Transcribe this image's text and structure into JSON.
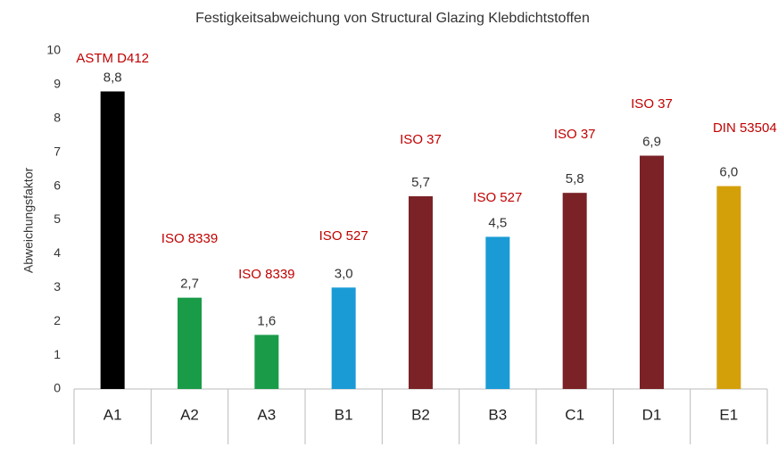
{
  "chart_data": {
    "type": "bar",
    "title": "Festigkeitsabweichung von Structural Glazing Klebdichtstoffen",
    "y_label": "Abweichungsfaktor",
    "categories": [
      "A1",
      "A2",
      "A3",
      "B1",
      "B2",
      "B3",
      "C1",
      "D1",
      "E1"
    ],
    "values": [
      8.8,
      2.7,
      1.6,
      3.0,
      5.7,
      4.5,
      5.8,
      6.9,
      6.0
    ],
    "value_labels": [
      "8,8",
      "2,7",
      "1,6",
      "3,0",
      "5,7",
      "4,5",
      "5,8",
      "6,9",
      "6,0"
    ],
    "annotations": [
      "ASTM D412",
      "ISO 8339",
      "ISO 8339",
      "ISO 527",
      "ISO 37",
      "ISO 527",
      "ISO 37",
      "ISO 37",
      "DIN 53504"
    ],
    "colors": [
      "#000000",
      "#1a9b48",
      "#1a9b48",
      "#1a9bd6",
      "#7a2226",
      "#1a9bd6",
      "#7a2226",
      "#7a2226",
      "#d4a00a"
    ],
    "ylim": [
      0,
      10
    ],
    "yticks": [
      0,
      1,
      2,
      3,
      4,
      5,
      6,
      7,
      8,
      9,
      10
    ],
    "grid": false
  }
}
